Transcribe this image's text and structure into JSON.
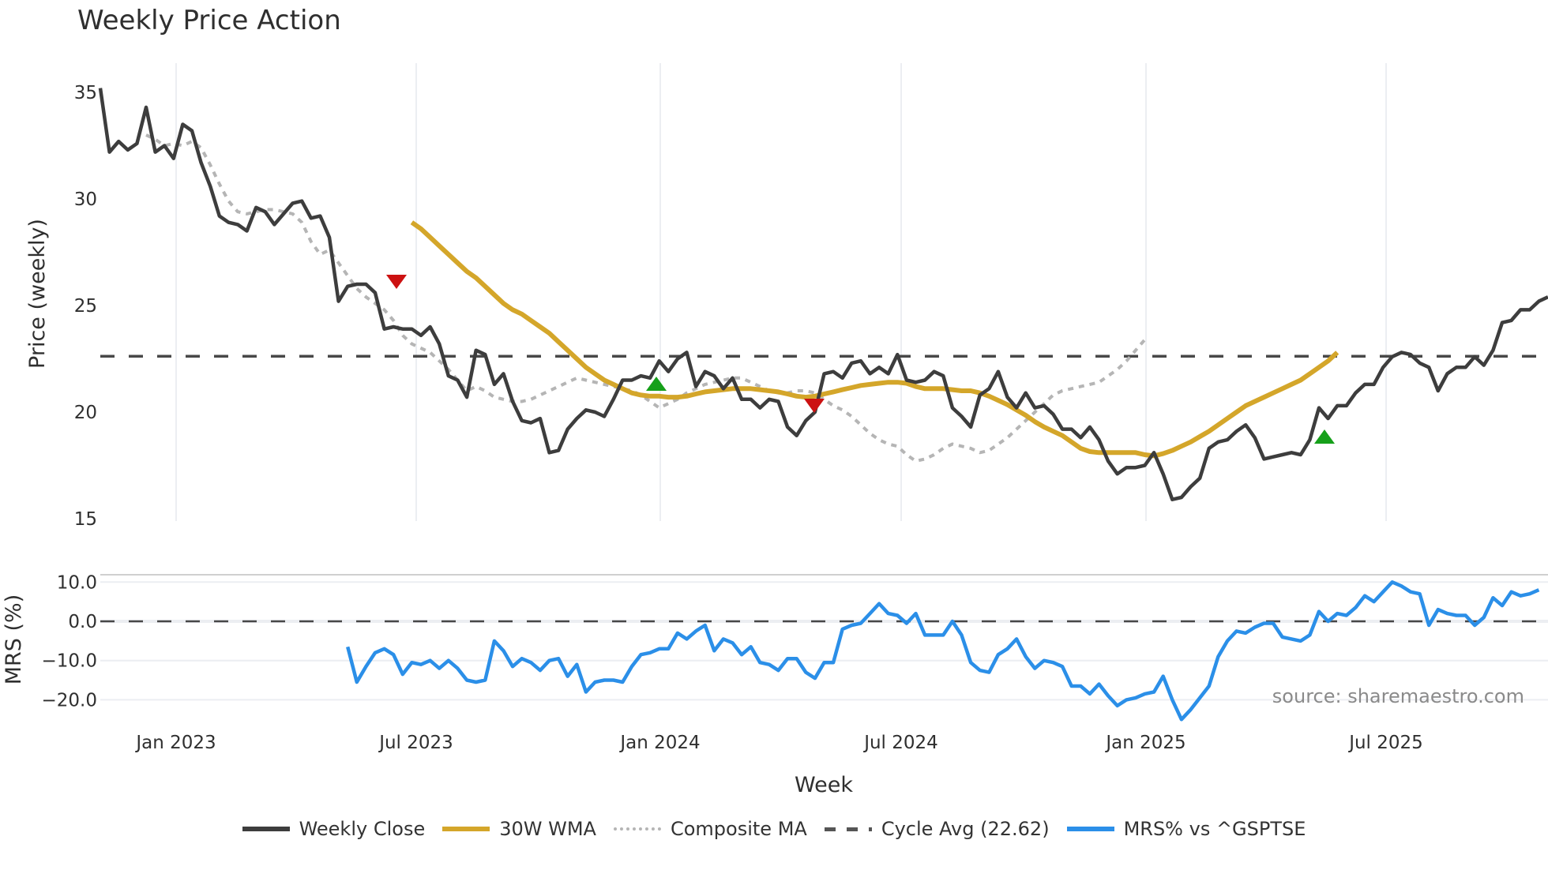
{
  "title": "Weekly Price Action",
  "source": "source: sharemaestro.com",
  "legend": [
    {
      "label": "Weekly Close",
      "color": "#3d3d3d",
      "style": "solid"
    },
    {
      "label": "30W WMA",
      "color": "#d4a62a",
      "style": "solid"
    },
    {
      "label": "Composite MA",
      "color": "#b5b5b5",
      "style": "dotted"
    },
    {
      "label": "Cycle Avg (22.62)",
      "color": "#555555",
      "style": "dashed"
    },
    {
      "label": "MRS% vs ^GSPTSE",
      "color": "#2b8fe8",
      "style": "solid"
    }
  ],
  "chart_data": [
    {
      "type": "line",
      "title": "Weekly Price Action",
      "xlabel": "Week",
      "ylabel": "Price (weekly)",
      "ylim": [
        15,
        35.5
      ],
      "yticks": [
        15,
        20,
        25,
        30,
        35
      ],
      "xticks": [
        "Jan 2023",
        "Jul 2023",
        "Jan 2024",
        "Jul 2024",
        "Jan 2025",
        "Jul 2025"
      ],
      "grid": true,
      "legend_position": "bottom",
      "reference_lines": [
        {
          "name": "Cycle Avg",
          "value": 22.62,
          "style": "dashed"
        }
      ],
      "markers": [
        {
          "type": "sell",
          "shape": "triangle-down",
          "color": "#cc1111",
          "x": "Jun 2023",
          "y": 26.2
        },
        {
          "type": "buy",
          "shape": "triangle-up",
          "color": "#16a01a",
          "x": "Jan 2024",
          "y": 21.3
        },
        {
          "type": "sell",
          "shape": "triangle-down",
          "color": "#cc1111",
          "x": "Apr 2024",
          "y": 20.3
        },
        {
          "type": "buy",
          "shape": "triangle-up",
          "color": "#16a01a",
          "x": "May 2025",
          "y": 18.7
        }
      ],
      "series": [
        {
          "name": "Weekly Close",
          "values": [
            35.2,
            32.2,
            32.7,
            32.3,
            32.6,
            34.3,
            32.2,
            32.5,
            31.9,
            33.5,
            33.2,
            31.7,
            30.6,
            29.2,
            28.9,
            28.8,
            28.5,
            29.6,
            29.4,
            28.8,
            29.3,
            29.8,
            29.9,
            29.1,
            29.2,
            28.2,
            25.2,
            25.9,
            26.0,
            26.0,
            25.6,
            23.9,
            24.0,
            23.9,
            23.9,
            23.6,
            24.0,
            23.2,
            21.7,
            21.5,
            20.7,
            22.9,
            22.7,
            21.3,
            21.8,
            20.5,
            19.6,
            19.5,
            19.7,
            18.1,
            18.2,
            19.2,
            19.7,
            20.1,
            20.0,
            19.8,
            20.6,
            21.5,
            21.5,
            21.7,
            21.6,
            22.4,
            21.9,
            22.5,
            22.8,
            21.2,
            21.9,
            21.7,
            21.1,
            21.6,
            20.6,
            20.6,
            20.2,
            20.6,
            20.5,
            19.3,
            18.9,
            19.6,
            20.0,
            21.8,
            21.9,
            21.6,
            22.3,
            22.4,
            21.8,
            22.1,
            21.8,
            22.7,
            21.5,
            21.4,
            21.5,
            21.9,
            21.7,
            20.2,
            19.8,
            19.3,
            20.8,
            21.1,
            21.9,
            20.7,
            20.2,
            20.9,
            20.2,
            20.3,
            19.9,
            19.2,
            19.2,
            18.8,
            19.3,
            18.7,
            17.7,
            17.1,
            17.4,
            17.4,
            17.5,
            18.1,
            17.1,
            15.9,
            16.0,
            16.5,
            16.9,
            18.3,
            18.6,
            18.7,
            19.1,
            19.4,
            18.8,
            17.8,
            17.9,
            18.0,
            18.1,
            18.0,
            18.7,
            20.2,
            19.7,
            20.3,
            20.3,
            20.9,
            21.3,
            21.3,
            22.1,
            22.6,
            22.8,
            22.7,
            22.3,
            22.1,
            21.0,
            21.8,
            22.1,
            22.1,
            22.6,
            22.2,
            22.9,
            24.2,
            24.3,
            24.8,
            24.8,
            25.2,
            25.4
          ]
        },
        {
          "name": "30W WMA",
          "start_index": 34,
          "values": [
            28.9,
            28.6,
            28.2,
            27.8,
            27.4,
            27.0,
            26.6,
            26.3,
            25.9,
            25.5,
            25.1,
            24.8,
            24.6,
            24.3,
            24.0,
            23.7,
            23.3,
            22.9,
            22.5,
            22.1,
            21.8,
            21.5,
            21.3,
            21.1,
            20.9,
            20.8,
            20.75,
            20.75,
            20.7,
            20.7,
            20.75,
            20.85,
            20.95,
            21.0,
            21.05,
            21.1,
            21.1,
            21.1,
            21.05,
            21.0,
            20.95,
            20.85,
            20.75,
            20.7,
            20.75,
            20.85,
            20.95,
            21.05,
            21.15,
            21.25,
            21.3,
            21.35,
            21.4,
            21.4,
            21.35,
            21.2,
            21.1,
            21.1,
            21.1,
            21.05,
            21.0,
            21.0,
            20.9,
            20.75,
            20.55,
            20.35,
            20.1,
            19.85,
            19.55,
            19.3,
            19.1,
            18.9,
            18.6,
            18.3,
            18.15,
            18.1,
            18.1,
            18.1,
            18.1,
            18.1,
            18.0,
            17.95,
            18.05,
            18.2,
            18.4,
            18.6,
            18.85,
            19.1,
            19.4,
            19.7,
            20.0,
            20.3,
            20.5,
            20.7,
            20.9,
            21.1,
            21.3,
            21.5,
            21.8,
            22.1,
            22.4,
            22.8
          ]
        },
        {
          "name": "Composite MA",
          "start_index": 5,
          "values": [
            33.0,
            32.8,
            32.5,
            32.6,
            32.5,
            32.7,
            32.4,
            31.6,
            30.7,
            29.9,
            29.4,
            29.3,
            29.4,
            29.5,
            29.5,
            29.4,
            29.3,
            28.9,
            28.0,
            27.4,
            27.6,
            27.0,
            26.4,
            25.8,
            25.4,
            25.1,
            24.8,
            24.3,
            23.6,
            23.2,
            23.0,
            22.8,
            22.4,
            22.0,
            21.5,
            21.0,
            21.2,
            21.0,
            20.7,
            20.6,
            20.5,
            20.5,
            20.6,
            20.8,
            21.0,
            21.2,
            21.4,
            21.6,
            21.5,
            21.4,
            21.3,
            21.2,
            21.1,
            21.0,
            20.8,
            20.5,
            20.2,
            20.4,
            20.6,
            20.9,
            21.1,
            21.3,
            21.4,
            21.5,
            21.6,
            21.6,
            21.4,
            21.2,
            21.0,
            20.9,
            20.9,
            21.0,
            21.0,
            20.9,
            20.6,
            20.3,
            20.1,
            19.8,
            19.4,
            19.0,
            18.7,
            18.5,
            18.4,
            18.0,
            17.7,
            17.8,
            18.0,
            18.3,
            18.5,
            18.4,
            18.3,
            18.1,
            18.2,
            18.5,
            18.8,
            19.2,
            19.6,
            20.0,
            20.4,
            20.8,
            21.0,
            21.1,
            21.2,
            21.3,
            21.4,
            21.7,
            22.0,
            22.4,
            22.9,
            23.4
          ]
        },
        {
          "name": "MRS% vs ^GSPTSE",
          "panel": "lower",
          "start_index": 27,
          "values": [
            -6.5,
            -15.5,
            -11.5,
            -8.0,
            -7.0,
            -8.5,
            -13.5,
            -10.5,
            -11.0,
            -10.0,
            -12.0,
            -10.0,
            -12.0,
            -15.0,
            -15.5,
            -15.0,
            -5.0,
            -7.5,
            -11.5,
            -9.5,
            -10.5,
            -12.5,
            -10.0,
            -9.5,
            -14.0,
            -11.0,
            -18.0,
            -15.5,
            -15.0,
            -15.0,
            -15.5,
            -11.5,
            -8.5,
            -8.0,
            -7.0,
            -7.0,
            -3.0,
            -4.5,
            -2.5,
            -1.0,
            -7.5,
            -4.5,
            -5.5,
            -8.5,
            -6.5,
            -10.5,
            -11.0,
            -12.5,
            -9.5,
            -9.5,
            -13.0,
            -14.5,
            -10.5,
            -10.5,
            -2.0,
            -1.0,
            -0.5,
            2.0,
            4.5,
            2.0,
            1.5,
            -0.5,
            2.0,
            -3.5,
            -3.5,
            -3.5,
            0.0,
            -3.5,
            -10.5,
            -12.5,
            -13.0,
            -8.5,
            -7.0,
            -4.5,
            -9.0,
            -12.0,
            -10.0,
            -10.5,
            -11.5,
            -16.5,
            -16.5,
            -18.5,
            -16.0,
            -19.0,
            -21.5,
            -20.0,
            -19.5,
            -18.5,
            -18.0,
            -14.0,
            -20.0,
            -25.0,
            -22.5,
            -19.5,
            -16.5,
            -9.0,
            -5.0,
            -2.5,
            -3.0,
            -1.5,
            -0.5,
            -0.5,
            -4.0,
            -4.5,
            -5.0,
            -3.5,
            2.5,
            0.0,
            2.0,
            1.5,
            3.5,
            6.5,
            5.0,
            7.5,
            10.0,
            9.0,
            7.5,
            7.0,
            -1.0,
            3.0,
            2.0,
            1.5,
            1.5,
            -1.0,
            1.0,
            6.0,
            4.0,
            7.5,
            6.5,
            7.0,
            8.0
          ]
        }
      ]
    },
    {
      "type": "line",
      "panel": "MRS",
      "ylabel": "MRS (%)",
      "yticks": [
        "10.0",
        "0.0",
        "−10.0",
        "−20.0"
      ],
      "ylim": [
        -27,
        12
      ],
      "reference_lines": [
        {
          "value": 0.0,
          "style": "dashed"
        }
      ]
    }
  ],
  "axes": {
    "price_ticks": [
      "35",
      "30",
      "25",
      "20",
      "15"
    ],
    "mrs_ticks": [
      "10.0",
      "0.0",
      "−10.0",
      "−20.0"
    ],
    "x_ticks": [
      "Jan 2023",
      "Jul 2023",
      "Jan 2024",
      "Jul 2024",
      "Jan 2025",
      "Jul 2025"
    ],
    "price_label": "Price (weekly)",
    "mrs_label": "MRS (%)",
    "x_label": "Week"
  }
}
